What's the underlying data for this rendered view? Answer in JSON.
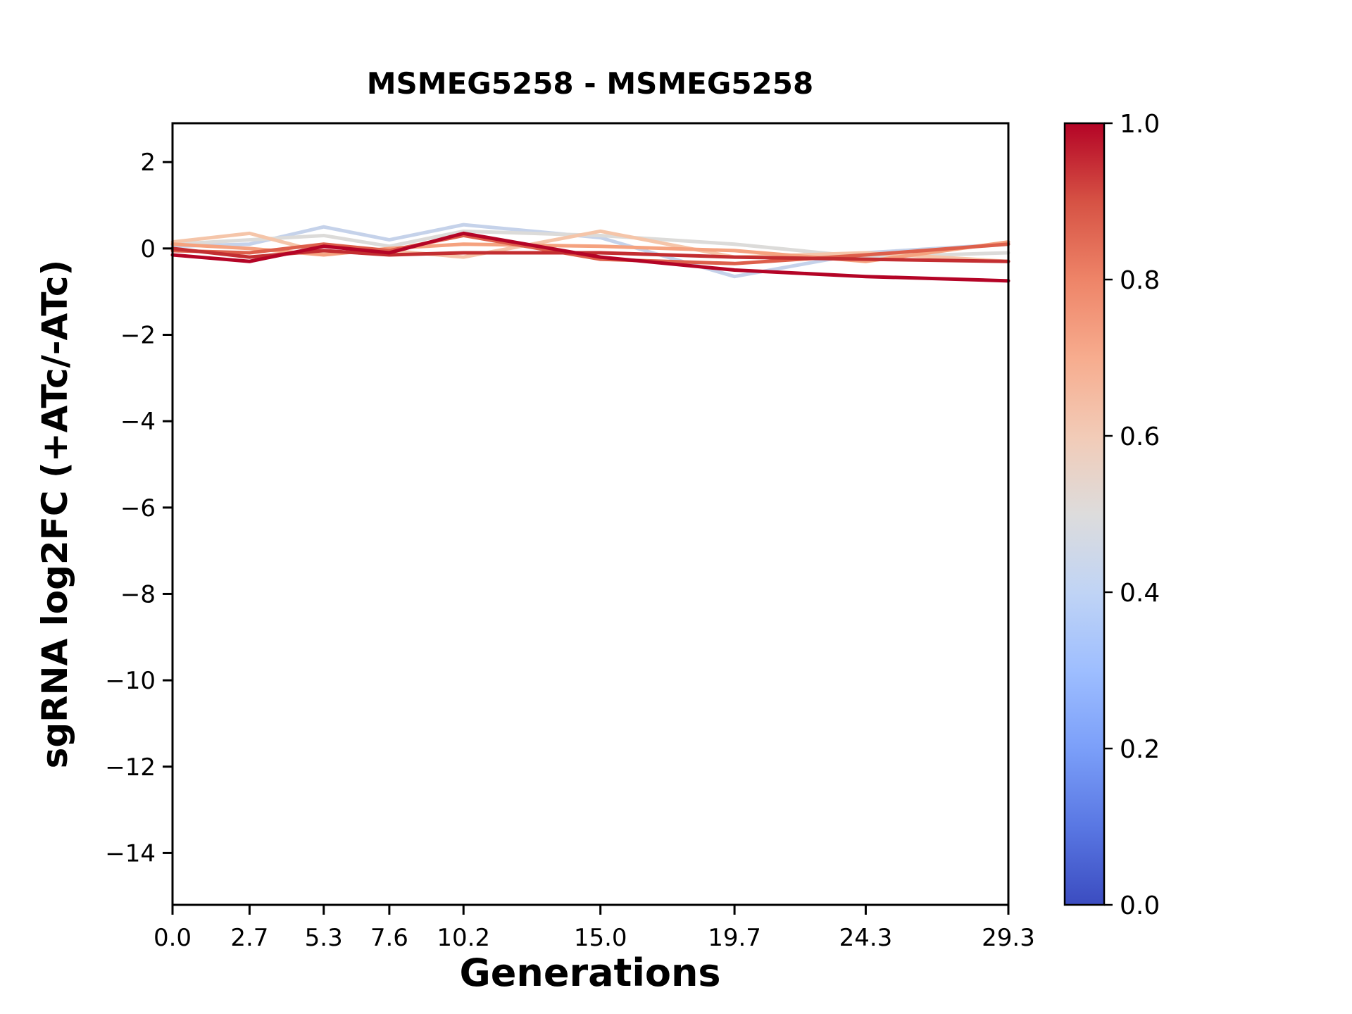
{
  "title": "MSMEG5258 - MSMEG5258",
  "chart_data": {
    "type": "line",
    "title": "MSMEG5258 - MSMEG5258",
    "xlabel": "Generations",
    "ylabel": "sgRNA log2FC (+ATc/-ATc)",
    "x": [
      0.0,
      2.7,
      5.3,
      7.6,
      10.2,
      15.0,
      19.7,
      24.3,
      29.3
    ],
    "xlim": [
      0.0,
      29.3
    ],
    "ylim": [
      -15.2,
      2.9
    ],
    "xticks": [
      0.0,
      2.7,
      5.3,
      7.6,
      10.2,
      15.0,
      19.7,
      24.3,
      29.3
    ],
    "xtick_labels": [
      "0.0",
      "2.7",
      "5.3",
      "7.6",
      "10.2",
      "15.0",
      "19.7",
      "24.3",
      "29.3"
    ],
    "yticks": [
      2,
      0,
      -2,
      -4,
      -6,
      -8,
      -10,
      -12,
      -14
    ],
    "ytick_labels": [
      "2",
      "0",
      "−2",
      "−4",
      "−6",
      "−8",
      "−10",
      "−12",
      "−14"
    ],
    "grid": false,
    "legend": "none",
    "series": [
      {
        "name": "line-1",
        "colormap_value": 0.42,
        "color": "#c5d2ea",
        "values": [
          0.05,
          0.1,
          0.5,
          0.2,
          0.55,
          0.25,
          -0.65,
          -0.1,
          0.1
        ]
      },
      {
        "name": "line-2",
        "colormap_value": 0.5,
        "color": "#dcdbd9",
        "values": [
          0.1,
          0.2,
          0.3,
          0.05,
          0.4,
          0.3,
          0.1,
          -0.2,
          -0.1
        ]
      },
      {
        "name": "line-3",
        "colormap_value": 0.6,
        "color": "#f5c5a9",
        "values": [
          0.15,
          0.35,
          -0.1,
          -0.05,
          -0.2,
          0.4,
          -0.2,
          -0.1,
          -0.3
        ]
      },
      {
        "name": "line-4",
        "colormap_value": 0.72,
        "color": "#f5a27f",
        "values": [
          0.1,
          0.0,
          -0.15,
          0.0,
          0.1,
          0.05,
          -0.05,
          -0.3,
          0.15
        ]
      },
      {
        "name": "line-5",
        "colormap_value": 0.85,
        "color": "#dd5f4b",
        "values": [
          -0.05,
          -0.1,
          0.1,
          -0.05,
          0.3,
          -0.25,
          -0.35,
          -0.15,
          0.1
        ]
      },
      {
        "name": "line-6",
        "colormap_value": 0.93,
        "color": "#c32e31",
        "values": [
          0.0,
          -0.2,
          -0.05,
          -0.15,
          -0.1,
          -0.1,
          -0.2,
          -0.25,
          -0.3
        ]
      },
      {
        "name": "line-7",
        "colormap_value": 1.0,
        "color": "#b40426",
        "values": [
          -0.15,
          -0.3,
          0.05,
          -0.1,
          0.35,
          -0.2,
          -0.5,
          -0.65,
          -0.75
        ]
      }
    ],
    "colorbar": {
      "min": 0.0,
      "max": 1.0,
      "tick_values": [
        0.0,
        0.2,
        0.4,
        0.6,
        0.8,
        1.0
      ],
      "tick_labels": [
        "0.0",
        "0.2",
        "0.4",
        "0.6",
        "0.8",
        "1.0"
      ],
      "colormap": "coolwarm",
      "stops": [
        {
          "offset": 0.0,
          "color": "#3b4cc0"
        },
        {
          "offset": 0.1,
          "color": "#5977e3"
        },
        {
          "offset": 0.2,
          "color": "#7b9ff9"
        },
        {
          "offset": 0.3,
          "color": "#9ebeff"
        },
        {
          "offset": 0.4,
          "color": "#c0d4f5"
        },
        {
          "offset": 0.5,
          "color": "#dddcdc"
        },
        {
          "offset": 0.6,
          "color": "#f2cbb7"
        },
        {
          "offset": 0.7,
          "color": "#f7ac8e"
        },
        {
          "offset": 0.8,
          "color": "#ee8468"
        },
        {
          "offset": 0.9,
          "color": "#d65244"
        },
        {
          "offset": 1.0,
          "color": "#b40426"
        }
      ]
    }
  }
}
